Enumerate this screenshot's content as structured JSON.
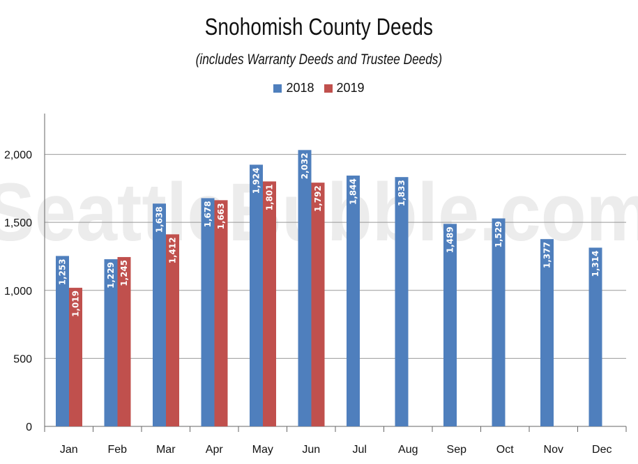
{
  "watermark": "SeattleBubble.com",
  "colors": {
    "2018": "#4f7fbd",
    "2019": "#c0504d",
    "grid": "#999999",
    "axis": "#666666"
  },
  "chart_data": {
    "type": "bar",
    "title": "Snohomish County Deeds",
    "subtitle": "(includes Warranty Deeds and Trustee Deeds)",
    "categories": [
      "Jan",
      "Feb",
      "Mar",
      "Apr",
      "May",
      "Jun",
      "Jul",
      "Aug",
      "Sep",
      "Oct",
      "Nov",
      "Dec"
    ],
    "series": [
      {
        "name": "2018",
        "values": [
          1253,
          1229,
          1638,
          1678,
          1924,
          2032,
          1844,
          1833,
          1489,
          1529,
          1377,
          1314
        ],
        "labels": [
          "1,253",
          "1,229",
          "1,638",
          "1,678",
          "1,924",
          "2,032",
          "1,844",
          "1,833",
          "1,489",
          "1,529",
          "1,377",
          "1,314"
        ]
      },
      {
        "name": "2019",
        "values": [
          1019,
          1245,
          1412,
          1663,
          1801,
          1792,
          null,
          null,
          null,
          null,
          null,
          null
        ],
        "labels": [
          "1,019",
          "1,245",
          "1,412",
          "1,663",
          "1,801",
          "1,792",
          "",
          "",
          "",
          "",
          "",
          ""
        ]
      }
    ],
    "yticks": [
      0,
      500,
      1000,
      1500,
      2000
    ],
    "ytick_labels": [
      "0",
      "500",
      "1,000",
      "1,500",
      "2,000"
    ],
    "ylim": [
      0,
      2300
    ],
    "grid": true,
    "legend": "top-center"
  }
}
